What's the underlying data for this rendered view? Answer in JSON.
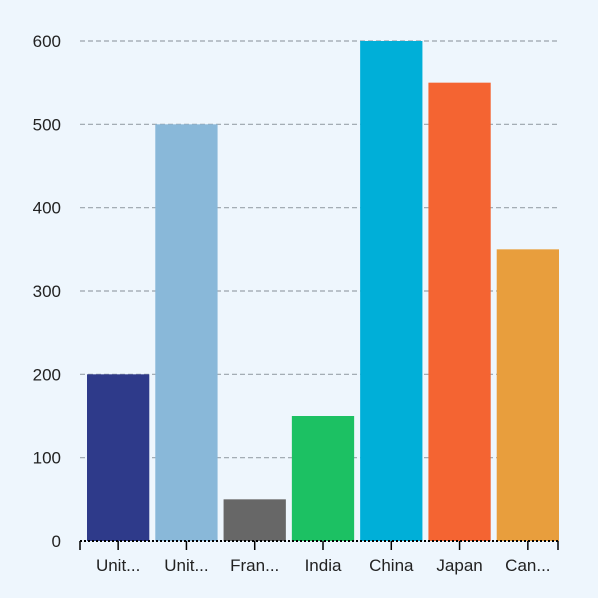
{
  "chart_data": {
    "type": "bar",
    "categories": [
      "Unit...",
      "Unit...",
      "Fran...",
      "India",
      "China",
      "Japan",
      "Can..."
    ],
    "values": [
      200,
      500,
      50,
      150,
      600,
      550,
      350
    ],
    "colors": [
      "#2e3a8a",
      "#89b8d9",
      "#676767",
      "#1cc163",
      "#00afd8",
      "#f46432",
      "#e89e3d"
    ],
    "y_ticks": [
      0,
      100,
      200,
      300,
      400,
      500,
      600
    ],
    "ylim": [
      0,
      600
    ],
    "grid": "horizontal dashed",
    "legend": "none"
  }
}
